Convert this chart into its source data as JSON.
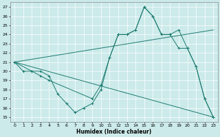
{
  "xlabel": "Humidex (Indice chaleur)",
  "xlim": [
    -0.5,
    23.5
  ],
  "ylim": [
    14.5,
    27.5
  ],
  "yticks": [
    15,
    16,
    17,
    18,
    19,
    20,
    21,
    22,
    23,
    24,
    25,
    26,
    27
  ],
  "xticks": [
    0,
    1,
    2,
    3,
    4,
    5,
    6,
    7,
    8,
    9,
    10,
    11,
    12,
    13,
    14,
    15,
    16,
    17,
    18,
    19,
    20,
    21,
    22,
    23
  ],
  "bg_color": "#cceaea",
  "grid_color": "#aad4d4",
  "line_color": "#1a7a6e",
  "series": [
    {
      "x": [
        0,
        1,
        2,
        3,
        4,
        5,
        6,
        7,
        8,
        9,
        10,
        11,
        12,
        13,
        14,
        15,
        16,
        17,
        18,
        19,
        20,
        21,
        22,
        23
      ],
      "y": [
        21.0,
        20.0,
        20.0,
        20.0,
        19.5,
        17.5,
        16.5,
        15.5,
        16.0,
        16.5,
        18.0,
        21.5,
        24.0,
        24.0,
        24.5,
        27.0,
        26.0,
        24.0,
        24.0,
        24.5,
        22.5,
        20.5,
        17.0,
        15.0
      ]
    },
    {
      "x": [
        0,
        2,
        3,
        4,
        9,
        10,
        11,
        12,
        13,
        14,
        15,
        16,
        17,
        18,
        19,
        20,
        21,
        22,
        23
      ],
      "y": [
        21.0,
        20.0,
        19.5,
        19.0,
        17.0,
        18.5,
        21.5,
        24.0,
        24.0,
        24.5,
        27.0,
        26.0,
        24.0,
        24.0,
        22.5,
        22.5,
        20.5,
        17.0,
        15.0
      ]
    },
    {
      "x": [
        0,
        23
      ],
      "y": [
        21.0,
        24.5
      ]
    },
    {
      "x": [
        0,
        23
      ],
      "y": [
        21.0,
        15.0
      ]
    }
  ]
}
